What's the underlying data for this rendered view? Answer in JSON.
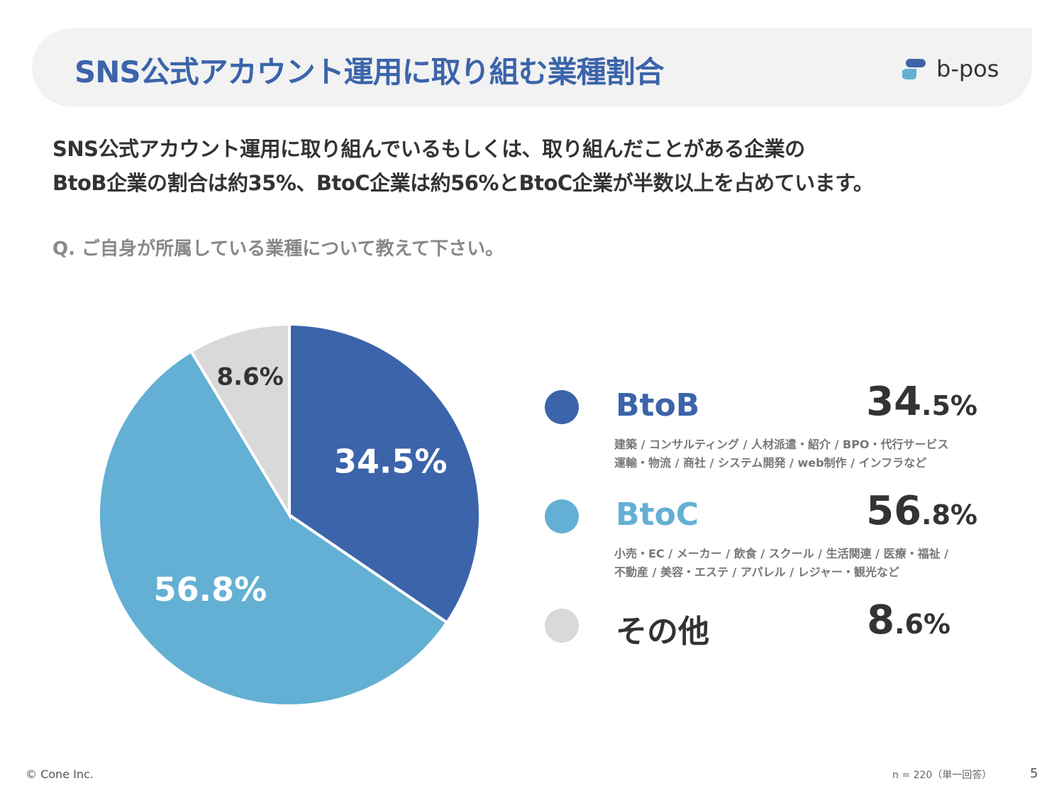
{
  "header": {
    "title": "SNS公式アカウント運用に取り組む業種割合",
    "logo_text": "b-pos"
  },
  "lead": {
    "line1": "SNS公式アカウント運用に取り組んでいるもしくは、取り組んだことがある企業の",
    "line2": "BtoB企業の割合は約35%、BtoC企業は約56%とBtoC企業が半数以上を占めています。"
  },
  "question": "Q. ご自身が所属している業種について教えて下さい。",
  "chart_data": {
    "type": "pie",
    "start": "top",
    "direction": "clockwise",
    "categories": [
      "BtoB",
      "BtoC",
      "その他"
    ],
    "values": [
      34.5,
      56.8,
      8.6
    ],
    "labels": [
      "34.5%",
      "56.8%",
      "8.6%"
    ],
    "colors": [
      "#3b64aa",
      "#63b0d4",
      "#d9d9d9"
    ],
    "label_colors": [
      "#ffffff",
      "#ffffff",
      "#333333"
    ]
  },
  "legend": [
    {
      "name": "BtoB",
      "int": "34",
      "dec": ".5%",
      "color": "#3b64aa",
      "desc1": "建築 / コンサルティング / 人材派遣・紹介 / BPO・代行サービス",
      "desc2": "運輸・物流 / 商社 / システム開発 / web制作 / インフラなど"
    },
    {
      "name": "BtoC",
      "int": "56",
      "dec": ".8%",
      "color": "#63b0d4",
      "desc1": "小売・EC / メーカー / 飲食 / スクール / 生活関連 / 医療・福祉 /",
      "desc2": "不動産 / 美容・エステ / アパレル / レジャー・観光など"
    },
    {
      "name": "その他",
      "int": "8",
      "dec": ".6%",
      "color": "#d9d9d9"
    }
  ],
  "footer": {
    "copyright": "© Cone Inc.",
    "sample": "n = 220（単一回答）",
    "page": "5"
  }
}
